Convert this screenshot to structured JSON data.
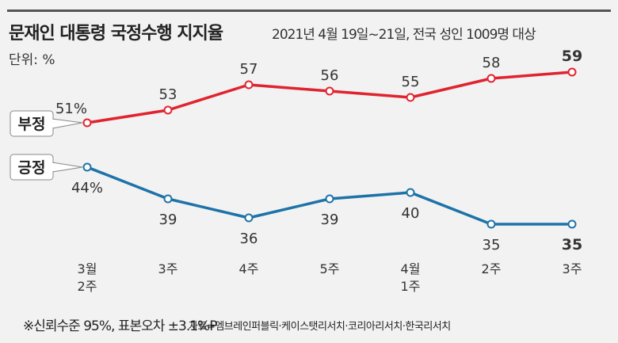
{
  "header": {
    "title": "문재인 대통령 국정수행 지지율",
    "subtitle": "2021년 4월 19일~21일, 전국 성인 1009명 대상",
    "unit": "단위: %"
  },
  "chart_data": {
    "type": "line",
    "title": "문재인 대통령 국정수행 지지율",
    "categories": [
      [
        "3월",
        "2주"
      ],
      [
        "3주"
      ],
      [
        "4주"
      ],
      [
        "5주"
      ],
      [
        "4월",
        "1주"
      ],
      [
        "2주"
      ],
      [
        "3주"
      ]
    ],
    "ylabel": "%",
    "series": [
      {
        "name": "부정",
        "color": "#e0242f",
        "values": [
          51,
          53,
          57,
          56,
          55,
          58,
          59
        ],
        "labels": [
          "51%",
          "53",
          "57",
          "56",
          "55",
          "58",
          "59"
        ]
      },
      {
        "name": "긍정",
        "color": "#1d73a8",
        "values": [
          44,
          39,
          36,
          39,
          40,
          35,
          35
        ],
        "labels": [
          "44%",
          "39",
          "36",
          "39",
          "40",
          "35",
          "35"
        ]
      }
    ]
  },
  "footer": {
    "note": "※신뢰수준 95%, 표본오차 ±3.1%P",
    "source": "자료=엠브레인퍼블릭·케이스탯리서치·코리아리서치·한국리서치"
  }
}
